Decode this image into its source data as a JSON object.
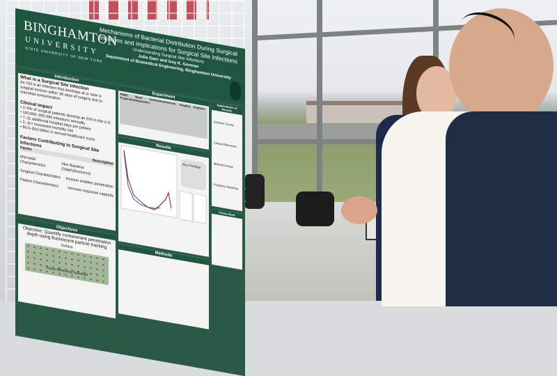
{
  "poster": {
    "logo_name": "BINGHAMTON",
    "logo_university": "UNIVERSITY",
    "logo_suny": "STATE UNIVERSITY OF NEW YORK",
    "title": "Mechanisms of Bacterial Distribution During Surgical Incisions and Implications for Surgical Site Infections",
    "subtitle": "Understanding Surgical Site Infections",
    "authors": "Julia Gaer and Guy K. German",
    "department": "Department of Biomedical Engineering, Binghamton University",
    "introduction": {
      "heading": "Introduction",
      "q": "What is a Surgical Site Infection",
      "a": "An SSI is an infection that develops at or near a surgical incision within 30 days of surgery due to microbial contamination.",
      "impact_heading": "Clinical Impact",
      "impact": [
        "2–5% of surgical patients develop an SSI in the U.S.",
        "160,000–300,000 infections annually",
        "7–11 additional hospital days per patient",
        "2–11× increased mortality risk",
        "$3.5–$10 billion in annual healthcare costs"
      ],
      "factors_heading": "Factors Contributing to Surgical Site Infections",
      "factors_cols": [
        "Factor",
        "Description"
      ],
      "factors": [
        [
          "Microbial Characteristics",
          "Skin Bacteria (Staphylococcus)"
        ],
        [
          "Surgical Characteristics",
          "Incision enables penetration"
        ],
        [
          "Patient Characteristics",
          "Immune response capacity"
        ]
      ]
    },
    "objectives": {
      "heading": "Objectives",
      "text": "Objective: Quantify contaminant penetration depth using fluorescent particle tracking",
      "surface": "Surface",
      "substrate": "Tissue-Mimicking Substrate"
    },
    "experiment": {
      "heading": "Experiment",
      "cols": [
        "PDMS Preparation",
        "Bead Deposition",
        "Sanitization",
        "Incision",
        "Imaging",
        "Analysis"
      ]
    },
    "results": {
      "heading": "Results",
      "key_findings": "Key Findings"
    },
    "methods": {
      "heading": "Methods"
    },
    "applications": {
      "heading": "Applications of Results",
      "items": [
        "Infection Control",
        "Clinical Relevance",
        "Material Design",
        "Predictive Modeling"
      ]
    },
    "future": {
      "heading": "Future Work"
    }
  }
}
